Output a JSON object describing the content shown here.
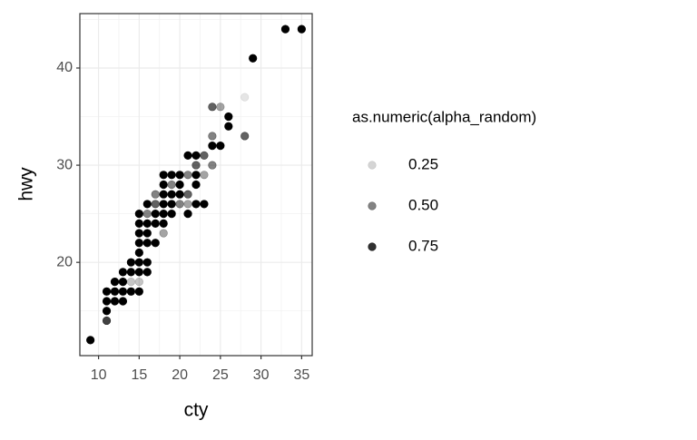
{
  "chart_data": {
    "type": "scatter",
    "x_label": "cty",
    "y_label": "hwy",
    "xlim": [
      7.7,
      36.3
    ],
    "ylim": [
      10.4,
      45.6
    ],
    "xticks": [
      10,
      15,
      20,
      25,
      30,
      35
    ],
    "yticks": [
      20,
      30,
      40
    ],
    "minor_xticks": [
      12.5,
      17.5,
      22.5,
      27.5,
      32.5
    ],
    "minor_yticks": [
      15,
      25,
      35,
      45
    ],
    "grid": true,
    "color": "#000000",
    "x": [
      9,
      11,
      11,
      11,
      11,
      12,
      12,
      12,
      13,
      13,
      13,
      13,
      14,
      14,
      14,
      14,
      15,
      15,
      15,
      15,
      15,
      15,
      15,
      15,
      15,
      16,
      16,
      16,
      16,
      16,
      16,
      16,
      17,
      17,
      17,
      17,
      17,
      18,
      18,
      18,
      18,
      18,
      18,
      18,
      19,
      19,
      19,
      19,
      19,
      20,
      20,
      20,
      20,
      21,
      21,
      21,
      21,
      21,
      22,
      22,
      22,
      22,
      22,
      23,
      23,
      23,
      24,
      24,
      24,
      24,
      25,
      25,
      26,
      26,
      28,
      28,
      29,
      33,
      35
    ],
    "y": [
      12,
      14,
      15,
      16,
      17,
      16,
      17,
      18,
      16,
      17,
      18,
      19,
      17,
      18,
      19,
      20,
      17,
      18,
      19,
      20,
      21,
      22,
      23,
      24,
      25,
      19,
      20,
      22,
      23,
      24,
      25,
      26,
      22,
      24,
      25,
      26,
      27,
      23,
      24,
      25,
      26,
      27,
      28,
      29,
      25,
      26,
      27,
      28,
      29,
      26,
      27,
      28,
      29,
      25,
      26,
      27,
      29,
      31,
      26,
      28,
      29,
      30,
      31,
      26,
      29,
      31,
      30,
      32,
      33,
      36,
      32,
      36,
      34,
      35,
      33,
      37,
      41,
      44,
      44
    ],
    "alpha": [
      0.9,
      0.7,
      0.9,
      0.9,
      0.9,
      0.9,
      0.9,
      0.9,
      0.9,
      0.9,
      0.9,
      0.9,
      0.9,
      0.3,
      0.9,
      0.9,
      0.9,
      0.3,
      0.9,
      0.9,
      0.9,
      0.9,
      0.9,
      0.9,
      0.9,
      0.9,
      0.9,
      0.9,
      0.9,
      0.9,
      0.5,
      0.9,
      0.9,
      0.9,
      0.9,
      0.6,
      0.5,
      0.4,
      0.9,
      0.9,
      0.9,
      0.9,
      0.9,
      0.9,
      0.9,
      0.9,
      0.9,
      0.5,
      0.9,
      0.5,
      0.9,
      0.9,
      0.9,
      0.9,
      0.4,
      0.6,
      0.5,
      0.9,
      0.9,
      0.9,
      0.9,
      0.6,
      0.9,
      0.9,
      0.4,
      0.6,
      0.5,
      0.9,
      0.5,
      0.6,
      0.9,
      0.4,
      0.9,
      0.9,
      0.6,
      0.2,
      0.9,
      0.9,
      0.9
    ],
    "legend": {
      "title": "as.numeric(alpha_random)",
      "breaks": [
        0.25,
        {
          "value": 0.5,
          "label": "0.50"
        },
        0.75
      ]
    }
  }
}
